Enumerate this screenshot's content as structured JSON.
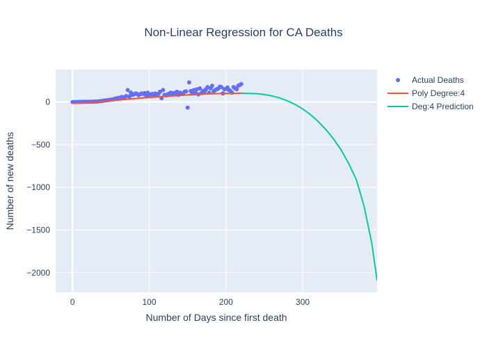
{
  "chart_data": {
    "type": "scatter",
    "title": "Non-Linear Regression for CA Deaths",
    "xlabel": "Number of Days since first death",
    "ylabel": "Number of new deaths",
    "xlim": [
      -22,
      397
    ],
    "ylim": [
      -2230,
      380
    ],
    "xticks": [
      0,
      100,
      200,
      300
    ],
    "xtick_labels": [
      "0",
      "100",
      "200",
      "300"
    ],
    "yticks": [
      0,
      -500,
      -1000,
      -1500,
      -2000
    ],
    "ytick_labels": [
      "0",
      "−500",
      "−1000",
      "−1500",
      "−2000"
    ],
    "grid": true,
    "legend": "top-right",
    "plot_background": "#e5ecf6",
    "series": [
      {
        "name": "Actual Deaths",
        "mode": "markers",
        "color": "#636efa",
        "x": [
          0,
          2,
          4,
          6,
          8,
          10,
          12,
          14,
          16,
          18,
          20,
          22,
          24,
          26,
          28,
          30,
          32,
          34,
          36,
          38,
          40,
          42,
          44,
          46,
          48,
          50,
          52,
          54,
          56,
          58,
          60,
          62,
          64,
          66,
          68,
          70,
          72,
          74,
          76,
          78,
          80,
          82,
          84,
          86,
          88,
          90,
          92,
          94,
          96,
          98,
          100,
          102,
          104,
          106,
          108,
          110,
          112,
          114,
          116,
          118,
          120,
          122,
          124,
          126,
          128,
          130,
          132,
          134,
          136,
          138,
          140,
          142,
          144,
          146,
          148,
          150,
          152,
          154,
          156,
          158,
          160,
          162,
          164,
          166,
          168,
          170,
          172,
          174,
          176,
          178,
          180,
          182,
          184,
          186,
          188,
          190,
          192,
          194,
          196,
          198,
          200,
          202,
          204,
          206,
          208,
          210,
          212,
          214,
          216,
          218,
          220
        ],
        "y": [
          0,
          0,
          0,
          1,
          0,
          2,
          1,
          2,
          3,
          2,
          3,
          4,
          3,
          4,
          5,
          6,
          5,
          8,
          10,
          12,
          15,
          18,
          20,
          22,
          25,
          28,
          30,
          35,
          40,
          45,
          50,
          40,
          60,
          55,
          50,
          70,
          140,
          65,
          110,
          85,
          90,
          100,
          95,
          80,
          90,
          100,
          95,
          105,
          70,
          110,
          75,
          90,
          95,
          85,
          100,
          80,
          95,
          120,
          45,
          140,
          85,
          75,
          90,
          100,
          110,
          95,
          105,
          90,
          120,
          85,
          110,
          100,
          95,
          120,
          125,
          -65,
          230,
          130,
          100,
          140,
          115,
          150,
          90,
          160,
          105,
          130,
          120,
          150,
          175,
          110,
          160,
          190,
          125,
          140,
          150,
          160,
          180,
          175,
          100,
          150,
          155,
          170,
          140,
          130,
          110,
          175,
          160,
          150,
          190,
          200,
          210
        ]
      },
      {
        "name": "Poly Degree:4",
        "mode": "lines",
        "color": "#ef553b",
        "x": [
          0,
          20,
          40,
          60,
          80,
          100,
          120,
          140,
          160,
          180,
          200,
          220
        ],
        "y": [
          -15,
          -7,
          8,
          24,
          40,
          54,
          66,
          77,
          88,
          96,
          101,
          103
        ]
      },
      {
        "name": "Deg:4 Prediction",
        "mode": "lines",
        "color": "#00cc96",
        "x": [
          220,
          230,
          240,
          250,
          260,
          270,
          280,
          290,
          300,
          310,
          320,
          330,
          340,
          350,
          360,
          370,
          380,
          390,
          397
        ],
        "y": [
          103,
          101,
          98,
          88,
          72,
          48,
          15,
          -28,
          -80,
          -147,
          -225,
          -320,
          -430,
          -560,
          -720,
          -910,
          -1220,
          -1650,
          -2090
        ]
      }
    ]
  }
}
